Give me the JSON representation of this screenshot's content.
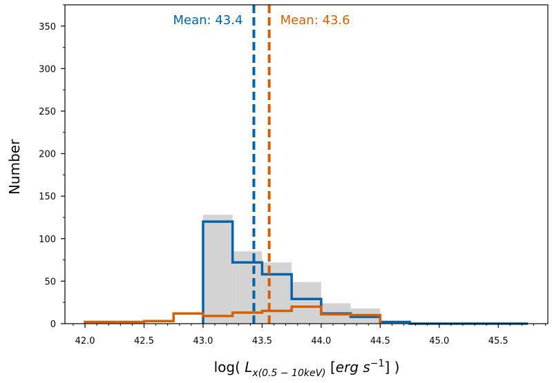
{
  "chart_data": {
    "type": "histogram",
    "title": "",
    "ylabel": "Number",
    "xlabel": {
      "prefix": "log( ",
      "symbol": "L",
      "subscript": "x(0.5 − 10keV)",
      "unit_open": " [",
      "unit_base": "erg s",
      "unit_exp": "−1",
      "unit_close": "] )"
    },
    "xlim": [
      41.83,
      45.92
    ],
    "ylim": [
      0,
      375
    ],
    "xticks": [
      42.0,
      42.5,
      43.0,
      43.5,
      44.0,
      44.5,
      45.0,
      45.5
    ],
    "xtick_labels": [
      "42.0",
      "42.5",
      "43.0",
      "43.5",
      "44.0",
      "44.5",
      "45.0",
      "45.5"
    ],
    "yticks": [
      0,
      50,
      100,
      150,
      200,
      250,
      300,
      350
    ],
    "ytick_labels": [
      "0",
      "50",
      "100",
      "150",
      "200",
      "250",
      "300",
      "350"
    ],
    "grid": false,
    "legend": "none",
    "series": [
      {
        "style": "filled",
        "color": "#d3d3d3",
        "edges": [
          43.0,
          43.25,
          43.5,
          43.75,
          44.0,
          44.25,
          44.5
        ],
        "values": [
          128,
          85,
          72,
          49,
          24,
          18
        ]
      },
      {
        "style": "step",
        "color": "#0063a8",
        "edges": [
          43.0,
          43.25,
          43.5,
          43.75,
          44.0,
          44.25,
          44.5,
          44.75,
          45.0,
          45.25,
          45.5,
          45.75
        ],
        "values": [
          120,
          72,
          58,
          29,
          12,
          8,
          2,
          0,
          0,
          0,
          0
        ]
      },
      {
        "style": "step",
        "color": "#d55e00",
        "edges": [
          42.0,
          42.25,
          42.5,
          42.75,
          43.0,
          43.25,
          43.5,
          43.75,
          44.0,
          44.25,
          44.5
        ],
        "values": [
          2,
          2,
          3,
          12,
          9,
          13,
          15,
          20,
          11,
          10
        ]
      }
    ],
    "vlines": [
      {
        "x": 43.43,
        "color": "#0063a8",
        "label": "Mean: 43.4",
        "label_side": "left"
      },
      {
        "x": 43.56,
        "color": "#d55e00",
        "label": "Mean: 43.6",
        "label_side": "right"
      }
    ]
  }
}
